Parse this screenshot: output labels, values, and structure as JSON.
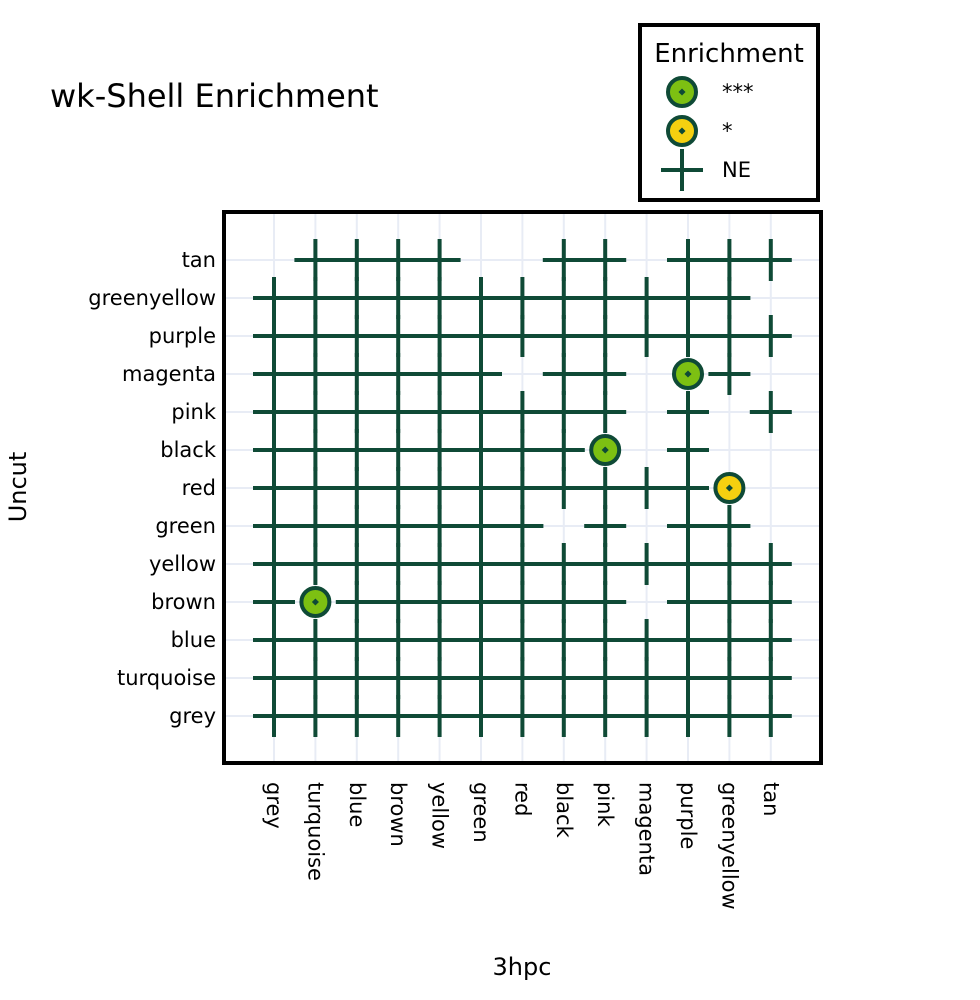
{
  "chart_data": {
    "type": "scatter",
    "title": "wk-Shell Enrichment",
    "xlabel": "3hpc",
    "ylabel": "Uncut",
    "x_categories": [
      "grey",
      "turquoise",
      "blue",
      "brown",
      "yellow",
      "green",
      "red",
      "black",
      "pink",
      "magenta",
      "purple",
      "greenyellow",
      "tan"
    ],
    "y_categories": [
      "grey",
      "turquoise",
      "blue",
      "brown",
      "yellow",
      "green",
      "red",
      "black",
      "pink",
      "magenta",
      "purple",
      "greenyellow",
      "tan"
    ],
    "legend": {
      "title": "Enrichment",
      "placement": "top-right",
      "entries": [
        {
          "label": "***",
          "marker": "circle",
          "fill": "#7dc012"
        },
        {
          "label": "*",
          "marker": "circle",
          "fill": "#f5d010"
        },
        {
          "label": "NE",
          "marker": "cross"
        }
      ]
    },
    "marker_stroke_color": "#0f4a36",
    "grid": true,
    "points": [
      {
        "x": "turquoise",
        "y": "brown",
        "enrichment": "***"
      },
      {
        "x": "pink",
        "y": "black",
        "enrichment": "***"
      },
      {
        "x": "purple",
        "y": "magenta",
        "enrichment": "***"
      },
      {
        "x": "greenyellow",
        "y": "red",
        "enrichment": "*"
      }
    ],
    "ne_missing": {
      "tan": [
        "grey",
        "green",
        "red",
        "magenta"
      ],
      "greenyellow": [
        "tan"
      ],
      "purple": [],
      "magenta": [
        "red",
        "magenta",
        "tan"
      ],
      "pink": [
        "magenta",
        "greenyellow"
      ],
      "black": [
        "magenta",
        "greenyellow",
        "tan"
      ],
      "red": [
        "tan"
      ],
      "green": [
        "black",
        "magenta",
        "tan"
      ],
      "yellow": [],
      "brown": [
        "magenta"
      ],
      "blue": [],
      "turquoise": [],
      "grey": []
    }
  }
}
